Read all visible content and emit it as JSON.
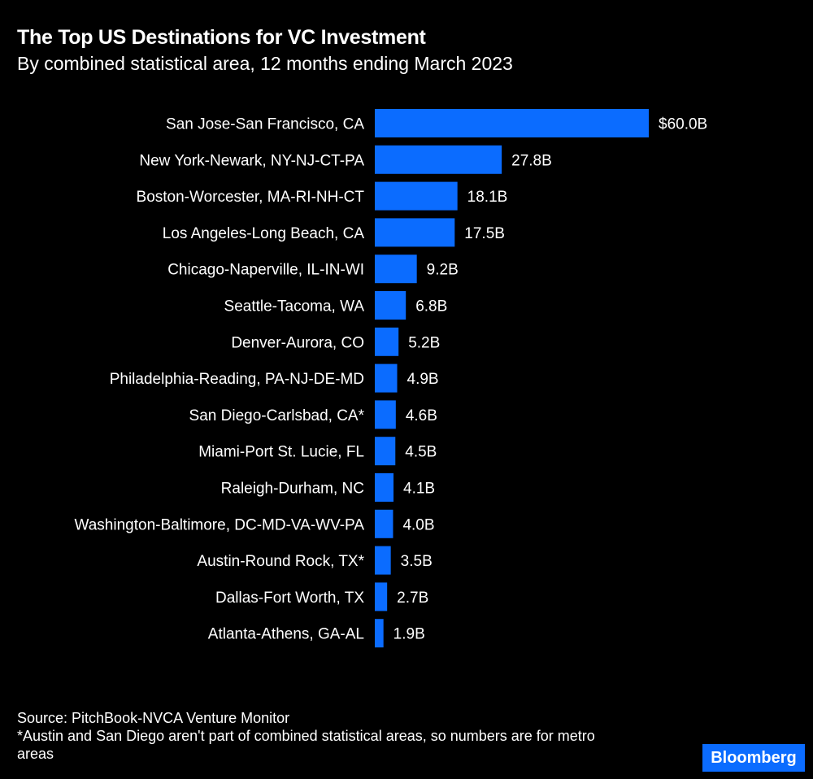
{
  "chart_data": {
    "type": "bar",
    "orientation": "horizontal",
    "title": "The Top US Destinations for VC Investment",
    "subtitle": "By combined statistical area, 12 months ending March 2023",
    "categories": [
      "San Jose-San Francisco, CA",
      "New York-Newark, NY-NJ-CT-PA",
      "Boston-Worcester, MA-RI-NH-CT",
      "Los Angeles-Long Beach, CA",
      "Chicago-Naperville, IL-IN-WI",
      "Seattle-Tacoma, WA",
      "Denver-Aurora, CO",
      "Philadelphia-Reading, PA-NJ-DE-MD",
      "San Diego-Carlsbad, CA*",
      "Miami-Port St. Lucie, FL",
      "Raleigh-Durham, NC",
      "Washington-Baltimore, DC-MD-VA-WV-PA",
      "Austin-Round Rock, TX*",
      "Dallas-Fort Worth, TX",
      "Atlanta-Athens, GA-AL"
    ],
    "values": [
      60.0,
      27.8,
      18.1,
      17.5,
      9.2,
      6.8,
      5.2,
      4.9,
      4.6,
      4.5,
      4.1,
      4.0,
      3.5,
      2.7,
      1.9
    ],
    "data_labels": [
      "$60.0B",
      "27.8B",
      "18.1B",
      "17.5B",
      "9.2B",
      "6.8B",
      "5.2B",
      "4.9B",
      "4.6B",
      "4.5B",
      "4.1B",
      "4.0B",
      "3.5B",
      "2.7B",
      "1.9B"
    ],
    "unit": "billion USD",
    "xlim": [
      0,
      60
    ],
    "grid": false,
    "bar_color": "#0b6cff",
    "background": "#000000"
  },
  "footer": {
    "source": "Source: PitchBook-NVCA Venture Monitor",
    "note": "*Austin and San Diego aren't part of combined statistical areas, so numbers are for metro areas"
  },
  "logo": "Bloomberg"
}
